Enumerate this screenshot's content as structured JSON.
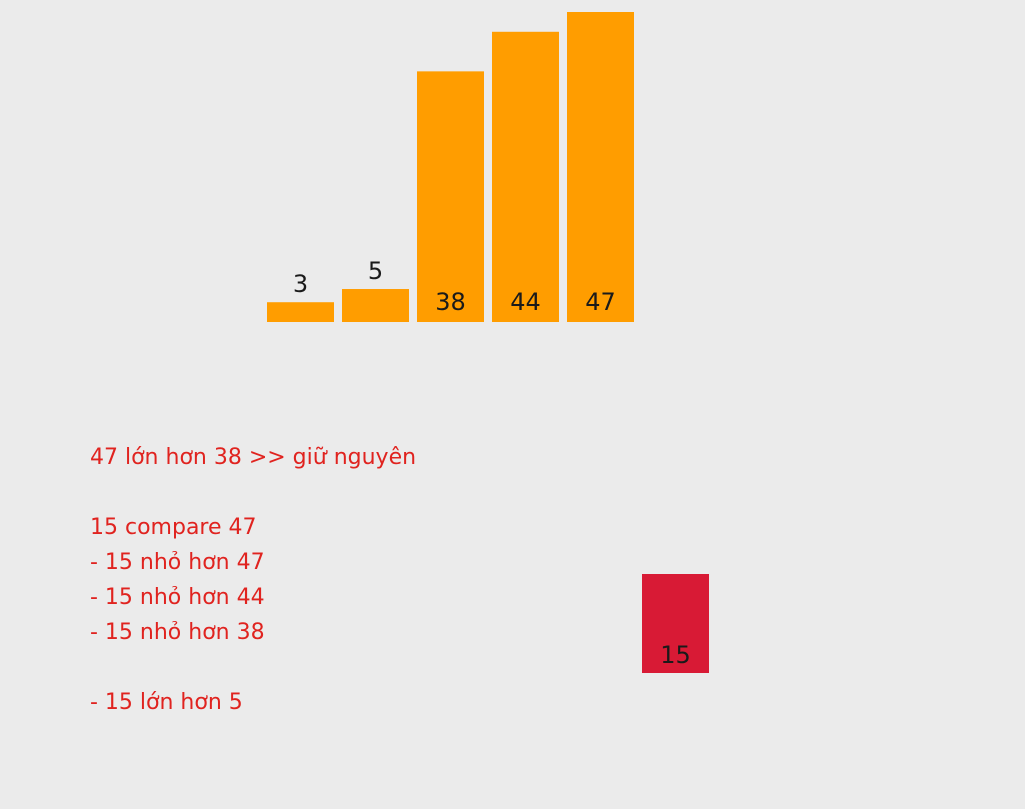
{
  "chart_data": {
    "type": "bar",
    "title": "",
    "sorted_bars": {
      "categories": [
        "3",
        "5",
        "38",
        "44",
        "47"
      ],
      "values": [
        3,
        5,
        38,
        44,
        47
      ],
      "color": "#ff9d00"
    },
    "key_bar": {
      "label": "15",
      "value": 15,
      "color": "#d81a35"
    }
  },
  "notes": [
    "47 lớn hơn 38 >> giữ nguyên",
    "",
    "15 compare 47",
    "- 15 nhỏ hơn 47",
    "- 15 nhỏ hơn 44",
    "- 15 nhỏ hơn 38",
    "",
    "- 15 lớn hơn 5"
  ],
  "colors": {
    "background": "#ebebeb",
    "note_text": "#e0231f",
    "label_text": "#1a1a1a"
  }
}
